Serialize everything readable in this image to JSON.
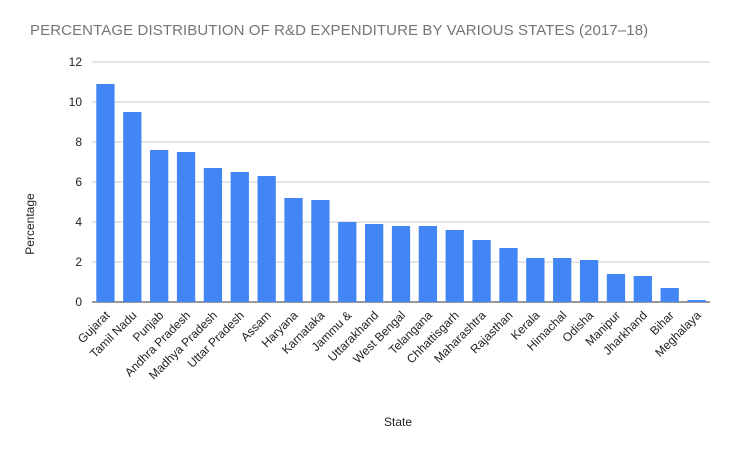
{
  "chart_data": {
    "type": "bar",
    "title": "PERCENTAGE DISTRIBUTION OF R&D EXPENDITURE BY VARIOUS STATES (2017–18)",
    "xlabel": "State",
    "ylabel": "Percentage",
    "ylim": [
      0,
      12
    ],
    "yticks": [
      0,
      2,
      4,
      6,
      8,
      10,
      12
    ],
    "grid": true,
    "legend": "none",
    "bar_color": "#4285f4",
    "categories": [
      "Gujarat",
      "Tamil Nadu",
      "Punjab",
      "Andhra Pradesh",
      "Madhya Pradesh",
      "Uttar Pradesh",
      "Assam",
      "Haryana",
      "Karnataka",
      "Jammu &",
      "Uttarakhand",
      "West Bengal",
      "Telangana",
      "Chhattisgarh",
      "Maharashtra",
      "Rajasthan",
      "Kerala",
      "Himachal",
      "Odisha",
      "Manipur",
      "Jharkhand",
      "Bihar",
      "Meghalaya"
    ],
    "values": [
      10.9,
      9.5,
      7.6,
      7.5,
      6.7,
      6.5,
      6.3,
      5.2,
      5.1,
      4.0,
      3.9,
      3.8,
      3.8,
      3.6,
      3.1,
      2.7,
      2.2,
      2.2,
      2.1,
      1.4,
      1.3,
      0.7,
      0.1
    ]
  }
}
